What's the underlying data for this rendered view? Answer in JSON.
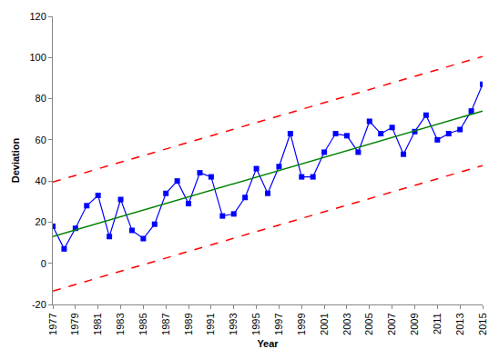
{
  "chart_data": {
    "type": "line",
    "x_label": "Year",
    "y_label": "Deviation",
    "x": [
      1977,
      1978,
      1979,
      1980,
      1981,
      1982,
      1983,
      1984,
      1985,
      1986,
      1987,
      1988,
      1989,
      1990,
      1991,
      1992,
      1993,
      1994,
      1995,
      1996,
      1997,
      1998,
      1999,
      2000,
      2001,
      2002,
      2003,
      2004,
      2005,
      2006,
      2007,
      2008,
      2009,
      2010,
      2011,
      2012,
      2013,
      2014,
      2015
    ],
    "series": [
      {
        "color": "#0000ff",
        "marker": "square",
        "line_style": "solid",
        "values": [
          18,
          7,
          17,
          28,
          33,
          13,
          31,
          16,
          12,
          19,
          34,
          40,
          29,
          44,
          42,
          23,
          24,
          32,
          46,
          34,
          47,
          63,
          42,
          42,
          54,
          63,
          62,
          54,
          69,
          63,
          66,
          53,
          64,
          72,
          60,
          63,
          65,
          74,
          87
        ]
      },
      {
        "color": "#008000",
        "marker": "none",
        "line_style": "solid",
        "values": [
          13,
          14.6,
          16.2,
          17.8,
          19.4,
          21,
          22.6,
          24.2,
          25.8,
          27.4,
          29.1,
          30.7,
          32.3,
          33.9,
          35.5,
          37.1,
          38.7,
          40.3,
          41.9,
          43.5,
          45.1,
          46.7,
          48.3,
          49.9,
          51.5,
          53.1,
          54.7,
          56.3,
          57.9,
          59.5,
          61.2,
          62.8,
          64.4,
          66,
          67.6,
          69.2,
          70.8,
          72.4,
          74
        ]
      },
      {
        "color": "#ff0000",
        "marker": "none",
        "line_style": "dashed",
        "values": [
          39.5,
          41.1,
          42.7,
          44.3,
          45.9,
          47.5,
          49.1,
          50.7,
          52.3,
          53.9,
          55.6,
          57.2,
          58.8,
          60.4,
          62,
          63.6,
          65.2,
          66.8,
          68.4,
          70,
          71.6,
          73.2,
          74.8,
          76.4,
          78,
          79.6,
          81.2,
          82.8,
          84.4,
          86,
          87.7,
          89.3,
          90.9,
          92.5,
          94.1,
          95.7,
          97.3,
          98.9,
          100.5
        ]
      },
      {
        "color": "#ff0000",
        "marker": "none",
        "line_style": "dashed",
        "values": [
          -13.5,
          -11.9,
          -10.3,
          -8.7,
          -7.1,
          -5.5,
          -3.9,
          -2.3,
          -0.7,
          0.9,
          2.6,
          4.2,
          5.8,
          7.4,
          9,
          10.6,
          12.2,
          13.8,
          15.4,
          17,
          18.6,
          20.2,
          21.8,
          23.4,
          25,
          26.6,
          28.2,
          29.8,
          31.4,
          33,
          34.7,
          36.3,
          37.9,
          39.5,
          41.1,
          42.7,
          44.3,
          45.9,
          47.5
        ]
      }
    ],
    "xlim": [
      1977,
      2015
    ],
    "xticks": [
      1977,
      1979,
      1981,
      1983,
      1985,
      1987,
      1989,
      1991,
      1993,
      1995,
      1997,
      1999,
      2001,
      2003,
      2005,
      2007,
      2009,
      2011,
      2013,
      2015
    ],
    "ylim": [
      -20,
      120
    ],
    "yticks": [
      -20,
      0,
      20,
      40,
      60,
      80,
      100,
      120
    ],
    "grid": false
  }
}
